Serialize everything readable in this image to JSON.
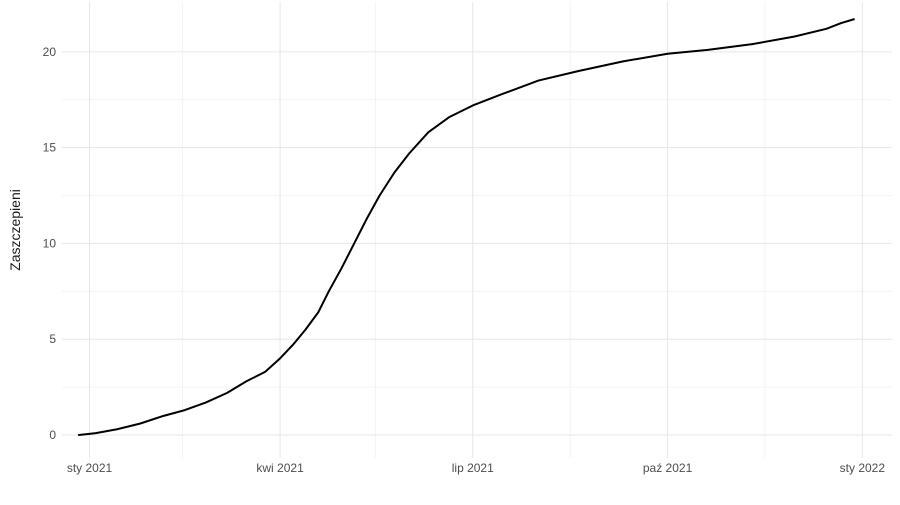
{
  "chart_data": {
    "type": "line",
    "title": "",
    "xlabel": "",
    "ylabel": "Zaszczepieni",
    "xlim": [
      "2020-12-19",
      "2022-01-15"
    ],
    "ylim": [
      -1.2,
      22.6
    ],
    "grid": true,
    "legend": "none",
    "x_ticks": [
      {
        "date": "2021-01-01",
        "label": "sty 2021"
      },
      {
        "date": "2021-04-01",
        "label": "kwi 2021"
      },
      {
        "date": "2021-07-01",
        "label": "lip 2021"
      },
      {
        "date": "2021-10-01",
        "label": "paź 2021"
      },
      {
        "date": "2022-01-01",
        "label": "sty 2022"
      }
    ],
    "x_minor_ticks": [
      "2021-02-14",
      "2021-05-16",
      "2021-08-16",
      "2021-11-16"
    ],
    "y_ticks": [
      {
        "value": 0,
        "label": "0"
      },
      {
        "value": 5,
        "label": "5"
      },
      {
        "value": 10,
        "label": "10"
      },
      {
        "value": 15,
        "label": "15"
      },
      {
        "value": 20,
        "label": "20"
      }
    ],
    "y_minor_ticks": [
      2.5,
      7.5,
      12.5,
      17.5
    ],
    "series": [
      {
        "color": "#000000",
        "points": [
          [
            "2020-12-27",
            0.0
          ],
          [
            "2021-01-04",
            0.1
          ],
          [
            "2021-01-14",
            0.3
          ],
          [
            "2021-01-25",
            0.6
          ],
          [
            "2021-02-05",
            1.0
          ],
          [
            "2021-02-15",
            1.3
          ],
          [
            "2021-02-25",
            1.7
          ],
          [
            "2021-03-07",
            2.2
          ],
          [
            "2021-03-16",
            2.8
          ],
          [
            "2021-03-25",
            3.3
          ],
          [
            "2021-04-01",
            4.0
          ],
          [
            "2021-04-07",
            4.7
          ],
          [
            "2021-04-13",
            5.5
          ],
          [
            "2021-04-19",
            6.4
          ],
          [
            "2021-04-24",
            7.5
          ],
          [
            "2021-04-30",
            8.7
          ],
          [
            "2021-05-06",
            10.0
          ],
          [
            "2021-05-12",
            11.3
          ],
          [
            "2021-05-18",
            12.5
          ],
          [
            "2021-05-25",
            13.7
          ],
          [
            "2021-06-01",
            14.7
          ],
          [
            "2021-06-10",
            15.8
          ],
          [
            "2021-06-20",
            16.6
          ],
          [
            "2021-07-01",
            17.2
          ],
          [
            "2021-07-15",
            17.8
          ],
          [
            "2021-08-01",
            18.5
          ],
          [
            "2021-08-20",
            19.0
          ],
          [
            "2021-09-10",
            19.5
          ],
          [
            "2021-10-01",
            19.9
          ],
          [
            "2021-10-20",
            20.1
          ],
          [
            "2021-11-10",
            20.4
          ],
          [
            "2021-11-30",
            20.8
          ],
          [
            "2021-12-15",
            21.2
          ],
          [
            "2021-12-22",
            21.5
          ],
          [
            "2021-12-28",
            21.7
          ]
        ]
      }
    ]
  }
}
